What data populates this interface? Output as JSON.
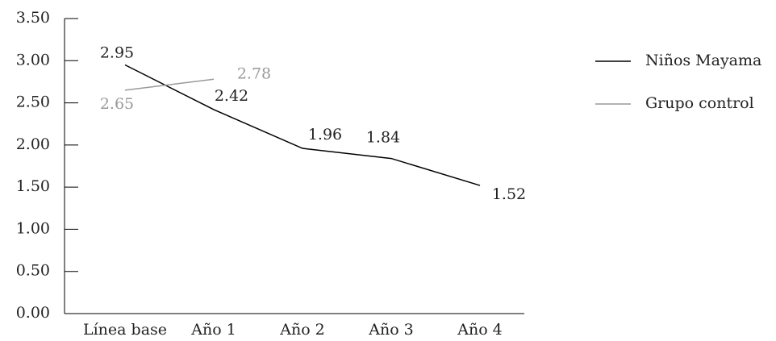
{
  "chart_data": {
    "type": "line",
    "categories": [
      "Línea base",
      "Año 1",
      "Año 2",
      "Año 3",
      "Año 4"
    ],
    "series": [
      {
        "name": "Niños Mayama",
        "color": "#000000",
        "values": [
          2.95,
          2.42,
          1.96,
          1.84,
          1.52
        ]
      },
      {
        "name": "Grupo control",
        "color": "#999999",
        "values": [
          2.65,
          2.78,
          null,
          null,
          null
        ]
      }
    ],
    "ylim": [
      0,
      3.5
    ],
    "yticks": [
      {
        "value": 0,
        "label": "0.00"
      },
      {
        "value": 0.5,
        "label": "0.50"
      },
      {
        "value": 1,
        "label": "1.00"
      },
      {
        "value": 1.5,
        "label": "1.50"
      },
      {
        "value": 2,
        "label": "2.00"
      },
      {
        "value": 2.5,
        "label": "2.50"
      },
      {
        "value": 3,
        "label": "3.00"
      },
      {
        "value": 3.5,
        "label": "3.50"
      }
    ],
    "grid": false,
    "legend": "right"
  }
}
